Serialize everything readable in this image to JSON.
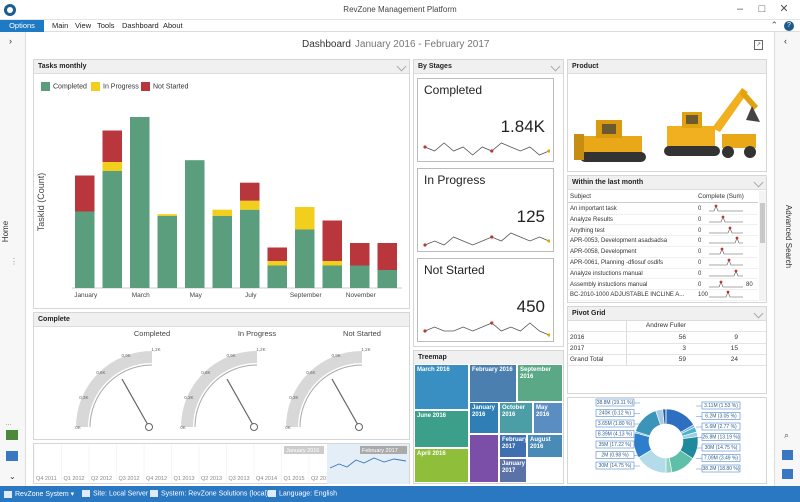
{
  "window": {
    "title": "RevZone Management Platform"
  },
  "menu": {
    "options": "Options",
    "items": [
      "Main",
      "View",
      "Tools",
      "Dashboard",
      "About"
    ],
    "help": "?"
  },
  "side": {
    "left_label": "Home",
    "right_label": "Advanced Search"
  },
  "dashboard": {
    "title": "Dashboard",
    "range": "January 2016 - February 2017"
  },
  "tasks_monthly": {
    "title": "Tasks monthly",
    "legend": [
      "Completed",
      "In Progress",
      "Not Started"
    ],
    "colors": {
      "completed": "#5a9e7d",
      "in_progress": "#f2cf1d",
      "not_started": "#b9363d"
    },
    "chart_data": {
      "type": "bar",
      "stacked": true,
      "categories": [
        "Jan",
        "Feb",
        "Mar",
        "Apr",
        "May",
        "Jun",
        "Jul",
        "Aug",
        "Sep",
        "Oct",
        "Nov",
        "Dec"
      ],
      "tick_labels": [
        "January",
        "",
        "March",
        "",
        "May",
        "",
        "July",
        "",
        "September",
        "",
        "November",
        ""
      ],
      "ylabel": "TaskId (Count)",
      "ylim": [
        0,
        200
      ],
      "series": [
        {
          "name": "Completed",
          "values": [
            85,
            130,
            190,
            80,
            142,
            80,
            87,
            25,
            65,
            25,
            25,
            20
          ]
        },
        {
          "name": "In Progress",
          "values": [
            0,
            10,
            0,
            2,
            0,
            7,
            10,
            5,
            25,
            5,
            0,
            0
          ]
        },
        {
          "name": "Not Started",
          "values": [
            40,
            35,
            0,
            0,
            0,
            0,
            20,
            15,
            0,
            45,
            25,
            30
          ]
        }
      ]
    }
  },
  "by_stages": {
    "title": "By Stages",
    "cards": [
      {
        "name": "Completed",
        "value": "1.84K",
        "spark": [
          5,
          4,
          6,
          4,
          5,
          3,
          5,
          4,
          6,
          5,
          4,
          5,
          3,
          4
        ]
      },
      {
        "name": "In Progress",
        "value": "125",
        "spark": [
          3,
          4,
          3,
          5,
          4,
          3,
          4,
          5,
          4,
          6,
          5,
          4,
          5,
          4
        ]
      },
      {
        "name": "Not Started",
        "value": "450",
        "spark": [
          4,
          5,
          4,
          4,
          5,
          4,
          5,
          6,
          4,
          5,
          4,
          6,
          4,
          3
        ]
      }
    ]
  },
  "product": {
    "title": "Product"
  },
  "within_month": {
    "title": "Within the last month",
    "columns": [
      "Subject",
      "Complete (Sum)"
    ],
    "rows": [
      {
        "subject": "An important task",
        "value": "0"
      },
      {
        "subject": "Analyze Results",
        "value": "0"
      },
      {
        "subject": "Anything test",
        "value": "0"
      },
      {
        "subject": "APR-0053, Development asadsadsa",
        "value": "0"
      },
      {
        "subject": "APR-0058, Development",
        "value": "0"
      },
      {
        "subject": "APR-0061, Planning -dfiosuf osdifs",
        "value": "0"
      },
      {
        "subject": "Analyze instuctions manual",
        "value": "0"
      },
      {
        "subject": "Assembly instuctions manual",
        "value": "0"
      },
      {
        "subject": "BC-2010-1000 ADJUSTABLE INCLINE A...",
        "value": "100"
      }
    ],
    "end_values": [
      "",
      "",
      "",
      "",
      "",
      "",
      "",
      "80",
      ""
    ]
  },
  "complete_gauges": {
    "title": "Complete",
    "gauges": [
      {
        "name": "Completed",
        "ticks": [
          "0K",
          "0,3K",
          "0,6K",
          "0,9K",
          "1,2K"
        ]
      },
      {
        "name": "In Progress",
        "ticks": [
          "0K",
          "0,3K",
          "0,6K",
          "0,9K",
          "1,2K"
        ]
      },
      {
        "name": "Not Started",
        "ticks": [
          "0K",
          "0,3K",
          "0,6K",
          "0,9K",
          "1,2K"
        ]
      }
    ]
  },
  "treemap": {
    "title": "Treemap",
    "cells": [
      "March 2016",
      "February 2016",
      "September 2016",
      "June 2016",
      "January 2016",
      "October 2016",
      "May 2016",
      "April 2016",
      "February 2017",
      "August 2016",
      "January 2017"
    ]
  },
  "pivot": {
    "title": "Pivot Grid",
    "header": [
      "",
      "Andrew Fuller",
      ""
    ],
    "rows": [
      {
        "label": "2016",
        "a": "56",
        "b": "9"
      },
      {
        "label": "2017",
        "a": "3",
        "b": "15"
      },
      {
        "label": "Grand Total",
        "a": "59",
        "b": "24"
      }
    ]
  },
  "donut": {
    "chart_data": {
      "type": "pie",
      "labels_left": [
        "38.8M (19.11 %)",
        "240K (0.12 %)",
        "3.65M (1.80 %)",
        "8.39M (4.13 %)",
        "35M (17.22 %)",
        "2M (0.98 %)",
        "30M (14.75 %)"
      ],
      "labels_right": [
        "3.11M (1.53 %)",
        "6.2M (3.05 %)",
        "5.6M (2.77 %)",
        "26.8M (13.19 %)",
        "30M (14.75 %)",
        "7.09M (3.49 %)",
        "38.2M (18.80 %)"
      ],
      "values": [
        19.11,
        1.53,
        3.05,
        2.77,
        13.19,
        14.75,
        3.49,
        18.8,
        14.75,
        0.98,
        17.22,
        4.13,
        1.8,
        0.12
      ]
    },
    "colors": [
      "#2e6fc1",
      "#74aee0",
      "#4cb3c9",
      "#9ad0e7",
      "#1f8a9c",
      "#5fbfa8",
      "#8fd3c0",
      "#b4dbe9",
      "#2e7fcb",
      "#6cb0dd",
      "#3b95b8",
      "#a7c9e6",
      "#1c5f96",
      "#cbe3f3"
    ]
  },
  "timeline": {
    "labels": [
      "Q4 2011",
      "Q1 2012",
      "Q2 2012",
      "Q3 2012",
      "Q4 2012",
      "Q1 2013",
      "Q2 2013",
      "Q3 2013",
      "Q4 2014",
      "Q1 2015",
      "Q2 2015"
    ],
    "range": [
      "January 2016",
      "February 2017"
    ]
  },
  "status": {
    "items": [
      "RevZone System",
      "Site: Local Server",
      "System: RevZone Solutions (local)",
      "Language: English"
    ]
  }
}
